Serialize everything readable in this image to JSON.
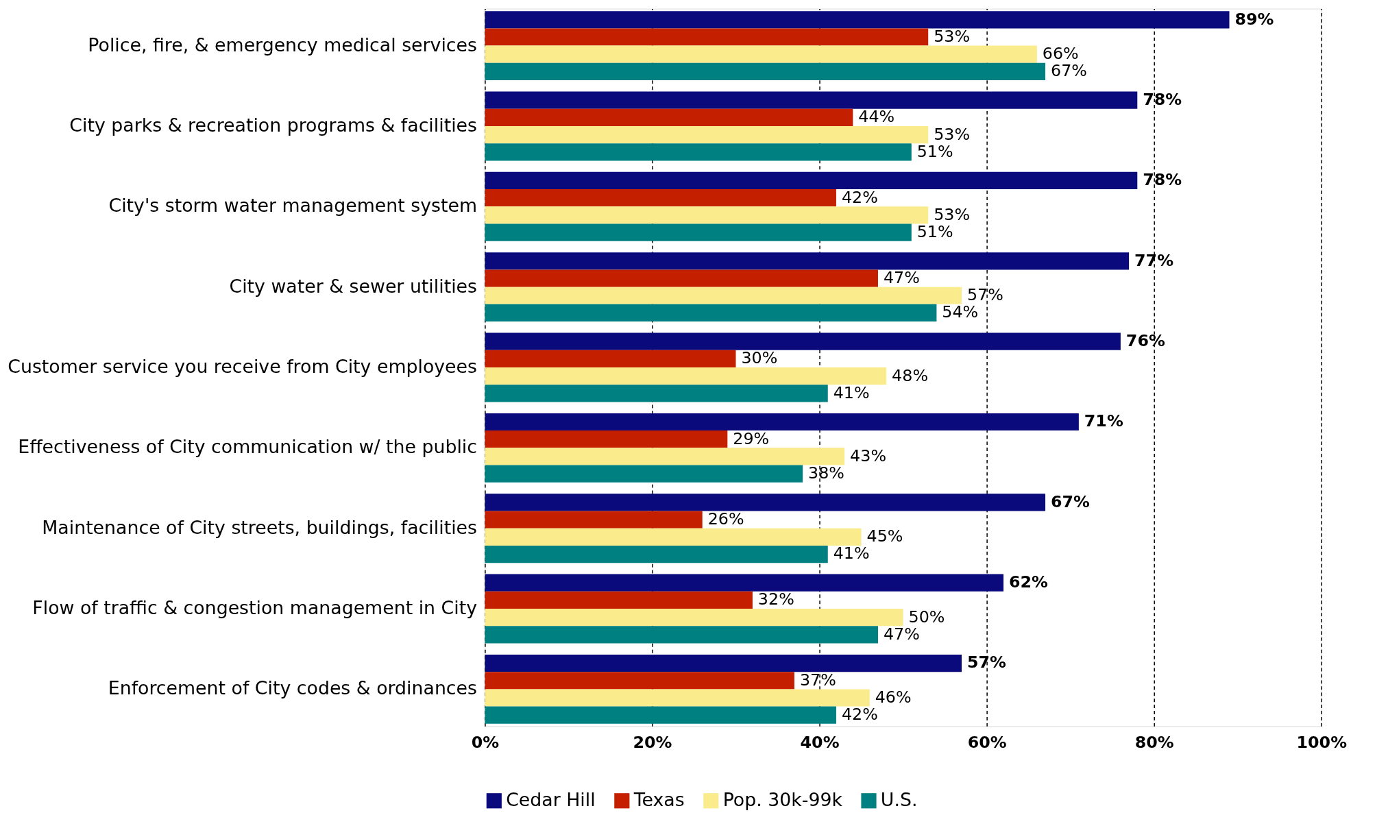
{
  "chart_data": {
    "type": "bar",
    "orientation": "horizontal",
    "categories": [
      "Police, fire, & emergency medical services",
      "City parks & recreation programs & facilities",
      "City's storm water management system",
      "City water & sewer utilities",
      "Customer service you receive from City employees",
      "Effectiveness of City communication w/ the public",
      "Maintenance of City streets, buildings, facilities",
      "Flow of traffic & congestion management in City",
      "Enforcement of City codes & ordinances"
    ],
    "series": [
      {
        "name": "Cedar Hill",
        "color": "#0a0a7c",
        "values": [
          89,
          78,
          78,
          77,
          76,
          71,
          67,
          62,
          57
        ],
        "value_labels": [
          "89%",
          "78%",
          "78%",
          "77%",
          "76%",
          "71%",
          "67%",
          "62%",
          "57%"
        ]
      },
      {
        "name": "Texas",
        "color": "#c42000",
        "values": [
          53,
          44,
          42,
          47,
          30,
          29,
          26,
          32,
          37
        ],
        "value_labels": [
          "53%",
          "44%",
          "42%",
          "47%",
          "30%",
          "29%",
          "26%",
          "32%",
          "37%"
        ]
      },
      {
        "name": "Pop. 30k-99k",
        "color": "#faeb8c",
        "values": [
          66,
          53,
          53,
          57,
          48,
          43,
          45,
          50,
          46
        ],
        "value_labels": [
          "66%",
          "53%",
          "53%",
          "57%",
          "48%",
          "43%",
          "45%",
          "50%",
          "46%"
        ]
      },
      {
        "name": "U.S.",
        "color": "#008080",
        "values": [
          67,
          51,
          51,
          54,
          41,
          38,
          41,
          47,
          42
        ],
        "value_labels": [
          "67%",
          "51%",
          "51%",
          "54%",
          "41%",
          "38%",
          "41%",
          "47%",
          "42%"
        ]
      }
    ],
    "xlim": [
      0,
      100
    ],
    "xticks": [
      {
        "value": 0,
        "label": "0%"
      },
      {
        "value": 20,
        "label": "20%"
      },
      {
        "value": 40,
        "label": "40%"
      },
      {
        "value": 60,
        "label": "60%"
      },
      {
        "value": 80,
        "label": "80%"
      },
      {
        "value": 100,
        "label": "100%"
      }
    ],
    "grid": "x",
    "legend": "bottom"
  }
}
